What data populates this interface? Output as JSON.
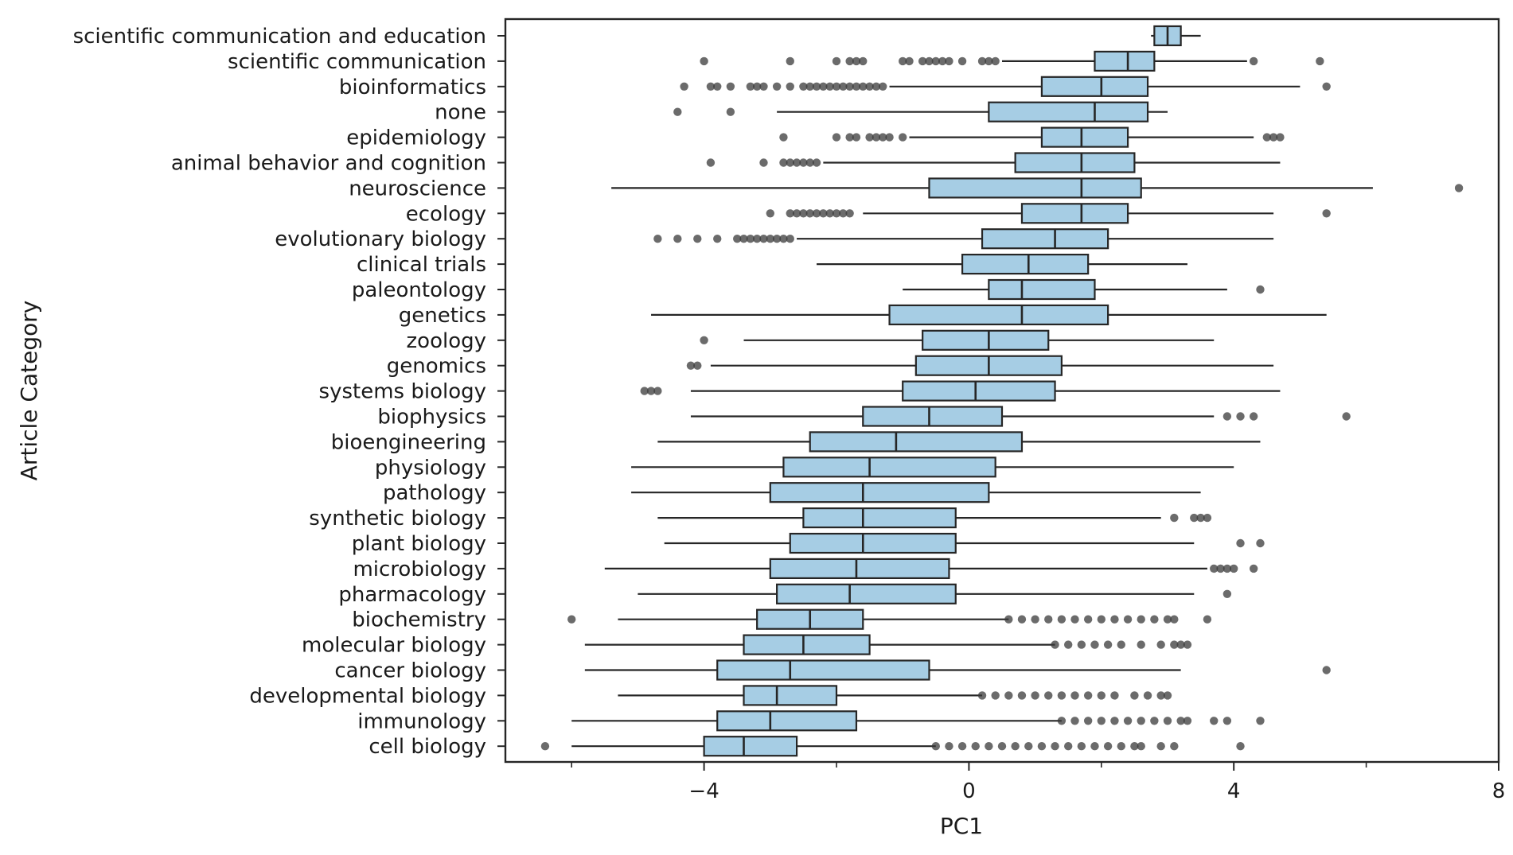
{
  "chart_data": {
    "type": "box",
    "orientation": "horizontal",
    "xlabel": "PC1",
    "ylabel": "Article Category",
    "xlim": [
      -7.0,
      8.0
    ],
    "xticks": [
      -4,
      0,
      4,
      8
    ],
    "xtick_labels": [
      "−4",
      "0",
      "4",
      "8"
    ],
    "minor_xticks": [
      -6,
      -2,
      2,
      6
    ],
    "grid": false,
    "colors": {
      "box_fill": "#a6cde4",
      "box_edge": "#262626",
      "outlier": "#3a3a3a"
    },
    "categories": [
      "scientific communication and education",
      "scientific communication",
      "bioinformatics",
      "none",
      "epidemiology",
      "animal behavior and cognition",
      "neuroscience",
      "ecology",
      "evolutionary biology",
      "clinical trials",
      "paleontology",
      "genetics",
      "zoology",
      "genomics",
      "systems biology",
      "biophysics",
      "bioengineering",
      "physiology",
      "pathology",
      "synthetic biology",
      "plant biology",
      "microbiology",
      "pharmacology",
      "biochemistry",
      "molecular biology",
      "cancer biology",
      "developmental biology",
      "immunology",
      "cell biology"
    ],
    "boxes": [
      {
        "whislo": 2.75,
        "q1": 2.8,
        "med": 3.0,
        "q3": 3.2,
        "whishi": 3.5,
        "outliers": []
      },
      {
        "whislo": 0.5,
        "q1": 1.9,
        "med": 2.4,
        "q3": 2.8,
        "whishi": 4.2,
        "outliers": [
          -4.0,
          -2.7,
          -2.0,
          -1.8,
          -1.7,
          -1.6,
          -1.0,
          -0.9,
          -0.7,
          -0.6,
          -0.5,
          -0.4,
          -0.3,
          -0.1,
          0.2,
          0.3,
          0.4,
          4.3,
          5.3
        ]
      },
      {
        "whislo": -1.2,
        "q1": 1.1,
        "med": 2.0,
        "q3": 2.7,
        "whishi": 5.0,
        "outliers": [
          -4.3,
          -3.9,
          -3.8,
          -3.6,
          -3.3,
          -3.2,
          -3.1,
          -2.9,
          -2.7,
          -2.5,
          -2.4,
          -2.3,
          -2.2,
          -2.1,
          -2.0,
          -1.9,
          -1.8,
          -1.7,
          -1.6,
          -1.5,
          -1.4,
          -1.3,
          5.4
        ]
      },
      {
        "whislo": -2.9,
        "q1": 0.3,
        "med": 1.9,
        "q3": 2.7,
        "whishi": 3.0,
        "outliers": [
          -4.4,
          -3.6
        ]
      },
      {
        "whislo": -0.9,
        "q1": 1.1,
        "med": 1.7,
        "q3": 2.4,
        "whishi": 4.3,
        "outliers": [
          -2.8,
          -2.0,
          -1.8,
          -1.7,
          -1.5,
          -1.4,
          -1.3,
          -1.2,
          -1.0,
          4.5,
          4.6,
          4.7
        ]
      },
      {
        "whislo": -2.2,
        "q1": 0.7,
        "med": 1.7,
        "q3": 2.5,
        "whishi": 4.7,
        "outliers": [
          -3.9,
          -3.1,
          -2.8,
          -2.7,
          -2.6,
          -2.5,
          -2.4,
          -2.3
        ]
      },
      {
        "whislo": -5.4,
        "q1": -0.6,
        "med": 1.7,
        "q3": 2.6,
        "whishi": 6.1,
        "outliers": [
          7.4
        ]
      },
      {
        "whislo": -1.6,
        "q1": 0.8,
        "med": 1.7,
        "q3": 2.4,
        "whishi": 4.6,
        "outliers": [
          -3.0,
          -2.7,
          -2.6,
          -2.5,
          -2.4,
          -2.3,
          -2.2,
          -2.1,
          -2.0,
          -1.9,
          -1.8,
          5.4
        ]
      },
      {
        "whislo": -2.6,
        "q1": 0.2,
        "med": 1.3,
        "q3": 2.1,
        "whishi": 4.6,
        "outliers": [
          -4.7,
          -4.4,
          -4.1,
          -3.8,
          -3.5,
          -3.4,
          -3.3,
          -3.2,
          -3.1,
          -3.0,
          -2.9,
          -2.8,
          -2.7
        ]
      },
      {
        "whislo": -2.3,
        "q1": -0.1,
        "med": 0.9,
        "q3": 1.8,
        "whishi": 3.3,
        "outliers": []
      },
      {
        "whislo": -1.0,
        "q1": 0.3,
        "med": 0.8,
        "q3": 1.9,
        "whishi": 3.9,
        "outliers": [
          4.4
        ]
      },
      {
        "whislo": -4.8,
        "q1": -1.2,
        "med": 0.8,
        "q3": 2.1,
        "whishi": 5.4,
        "outliers": []
      },
      {
        "whislo": -3.4,
        "q1": -0.7,
        "med": 0.3,
        "q3": 1.2,
        "whishi": 3.7,
        "outliers": [
          -4.0
        ]
      },
      {
        "whislo": -3.9,
        "q1": -0.8,
        "med": 0.3,
        "q3": 1.4,
        "whishi": 4.6,
        "outliers": [
          -4.2,
          -4.1
        ]
      },
      {
        "whislo": -4.2,
        "q1": -1.0,
        "med": 0.1,
        "q3": 1.3,
        "whishi": 4.7,
        "outliers": [
          -4.9,
          -4.8,
          -4.7
        ]
      },
      {
        "whislo": -4.2,
        "q1": -1.6,
        "med": -0.6,
        "q3": 0.5,
        "whishi": 3.7,
        "outliers": [
          3.9,
          4.1,
          4.3,
          5.7
        ]
      },
      {
        "whislo": -4.7,
        "q1": -2.4,
        "med": -1.1,
        "q3": 0.8,
        "whishi": 4.4,
        "outliers": []
      },
      {
        "whislo": -5.1,
        "q1": -2.8,
        "med": -1.5,
        "q3": 0.4,
        "whishi": 4.0,
        "outliers": []
      },
      {
        "whislo": -5.1,
        "q1": -3.0,
        "med": -1.6,
        "q3": 0.3,
        "whishi": 3.5,
        "outliers": []
      },
      {
        "whislo": -4.7,
        "q1": -2.5,
        "med": -1.6,
        "q3": -0.2,
        "whishi": 2.9,
        "outliers": [
          3.1,
          3.4,
          3.5,
          3.6
        ]
      },
      {
        "whislo": -4.6,
        "q1": -2.7,
        "med": -1.6,
        "q3": -0.2,
        "whishi": 3.4,
        "outliers": [
          4.1,
          4.4
        ]
      },
      {
        "whislo": -5.5,
        "q1": -3.0,
        "med": -1.7,
        "q3": -0.3,
        "whishi": 3.6,
        "outliers": [
          3.7,
          3.8,
          3.9,
          4.0,
          4.3
        ]
      },
      {
        "whislo": -5.0,
        "q1": -2.9,
        "med": -1.8,
        "q3": -0.2,
        "whishi": 3.4,
        "outliers": [
          3.9
        ]
      },
      {
        "whislo": -5.3,
        "q1": -3.2,
        "med": -2.4,
        "q3": -1.6,
        "whishi": 0.6,
        "outliers": [
          -6.0,
          0.6,
          0.8,
          1.0,
          1.2,
          1.4,
          1.6,
          1.8,
          2.0,
          2.2,
          2.4,
          2.6,
          2.8,
          3.0,
          3.1,
          3.6
        ]
      },
      {
        "whislo": -5.8,
        "q1": -3.4,
        "med": -2.5,
        "q3": -1.5,
        "whishi": 1.3,
        "outliers": [
          1.3,
          1.5,
          1.7,
          1.9,
          2.1,
          2.3,
          2.6,
          2.9,
          3.1,
          3.2,
          3.3
        ]
      },
      {
        "whislo": -5.8,
        "q1": -3.8,
        "med": -2.7,
        "q3": -0.6,
        "whishi": 3.2,
        "outliers": [
          5.4
        ]
      },
      {
        "whislo": -5.3,
        "q1": -3.4,
        "med": -2.9,
        "q3": -2.0,
        "whishi": 0.2,
        "outliers": [
          0.2,
          0.4,
          0.6,
          0.8,
          1.0,
          1.2,
          1.4,
          1.6,
          1.8,
          2.0,
          2.2,
          2.5,
          2.7,
          2.9,
          3.0
        ]
      },
      {
        "whislo": -6.0,
        "q1": -3.8,
        "med": -3.0,
        "q3": -1.7,
        "whishi": 1.4,
        "outliers": [
          1.4,
          1.6,
          1.8,
          2.0,
          2.2,
          2.4,
          2.6,
          2.8,
          3.0,
          3.2,
          3.3,
          3.7,
          3.9,
          4.4
        ]
      },
      {
        "whislo": -6.0,
        "q1": -4.0,
        "med": -3.4,
        "q3": -2.6,
        "whishi": -0.5,
        "outliers": [
          -6.4,
          -0.5,
          -0.3,
          -0.1,
          0.1,
          0.3,
          0.5,
          0.7,
          0.9,
          1.1,
          1.3,
          1.5,
          1.7,
          1.9,
          2.1,
          2.3,
          2.5,
          2.6,
          2.9,
          3.1,
          4.1
        ]
      }
    ]
  }
}
